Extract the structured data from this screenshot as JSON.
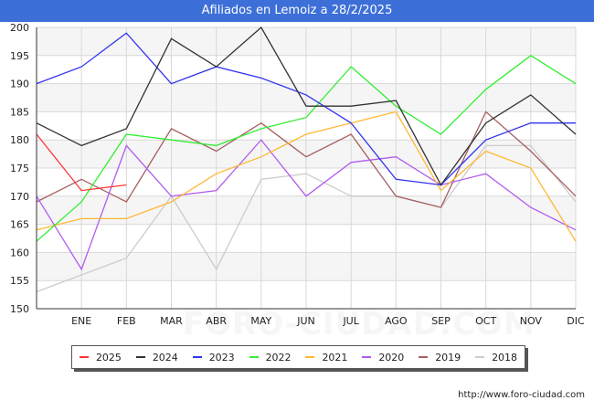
{
  "page_title": "Afiliados en Lemoiz a 28/2/2025",
  "source": "http://www.foro-ciudad.com",
  "watermark": "FORO-CIUDAD.COM",
  "chart_data": {
    "type": "line",
    "title": "Afiliados en Lemoiz a 28/2/2025",
    "xlabel": "",
    "ylabel": "",
    "categories": [
      "DIC",
      "ENE",
      "FEB",
      "MAR",
      "ABR",
      "MAY",
      "JUN",
      "JUL",
      "AGO",
      "SEP",
      "OCT",
      "NOV",
      "DIC"
    ],
    "x_tick_labels": [
      "",
      "ENE",
      "FEB",
      "MAR",
      "ABR",
      "MAY",
      "JUN",
      "JUL",
      "AGO",
      "SEP",
      "OCT",
      "NOV",
      "DIC"
    ],
    "y_ticks": [
      150,
      155,
      160,
      165,
      170,
      175,
      180,
      185,
      190,
      195,
      200
    ],
    "ylim": [
      150,
      200
    ],
    "grid": true,
    "legend_position": "bottom",
    "series": [
      {
        "name": "2025",
        "color": "#ff3333",
        "values": [
          181,
          171,
          172,
          null,
          null,
          null,
          null,
          null,
          null,
          null,
          null,
          null,
          null
        ]
      },
      {
        "name": "2024",
        "color": "#333333",
        "values": [
          183,
          179,
          182,
          198,
          193,
          200,
          186,
          186,
          187,
          172,
          183,
          188,
          181
        ]
      },
      {
        "name": "2023",
        "color": "#3333ee",
        "values": [
          190,
          193,
          199,
          190,
          193,
          191,
          188,
          183,
          173,
          172,
          180,
          183,
          183
        ]
      },
      {
        "name": "2022",
        "color": "#33ee33",
        "values": [
          162,
          169,
          181,
          180,
          179,
          182,
          184,
          193,
          186,
          181,
          189,
          195,
          190
        ]
      },
      {
        "name": "2021",
        "color": "#ffb833",
        "values": [
          164,
          166,
          166,
          169,
          174,
          177,
          181,
          183,
          185,
          171,
          178,
          175,
          162
        ]
      },
      {
        "name": "2020",
        "color": "#b05cf0",
        "values": [
          170,
          157,
          179,
          170,
          171,
          180,
          170,
          176,
          177,
          172,
          174,
          168,
          164
        ]
      },
      {
        "name": "2019",
        "color": "#a86060",
        "values": [
          169,
          173,
          169,
          182,
          178,
          183,
          177,
          181,
          170,
          168,
          185,
          178,
          170
        ]
      },
      {
        "name": "2018",
        "color": "#cccccc",
        "values": [
          153,
          156,
          159,
          170,
          157,
          173,
          174,
          170,
          170,
          168,
          179,
          179,
          169
        ]
      }
    ]
  }
}
